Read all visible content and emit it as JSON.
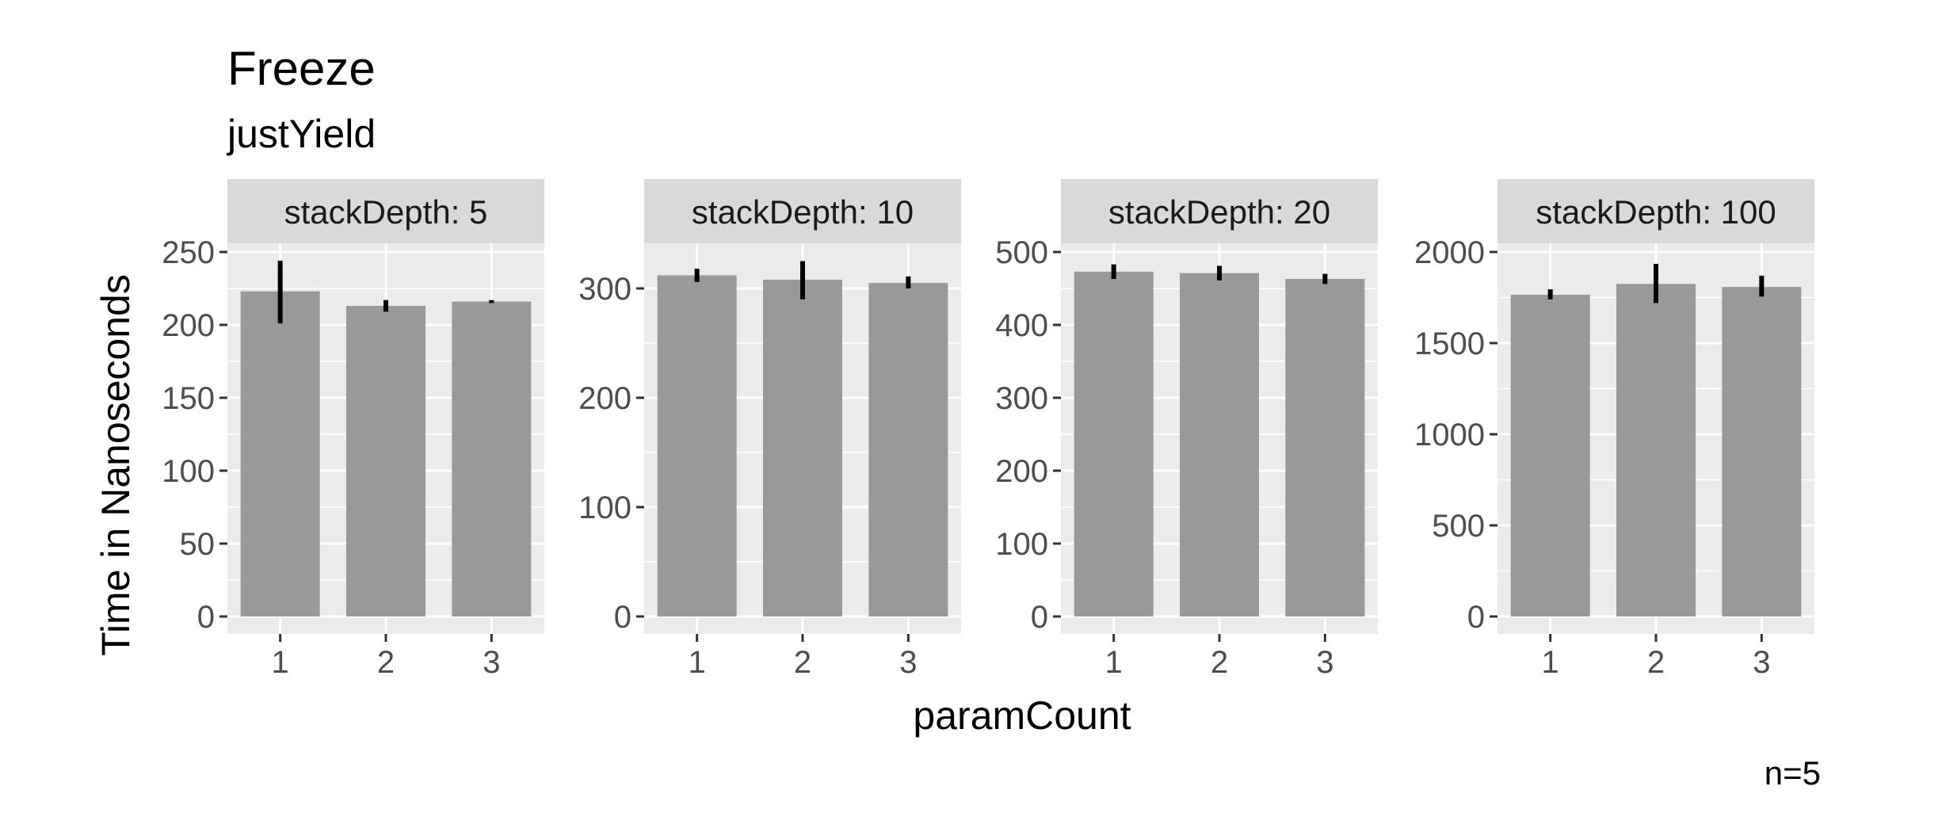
{
  "title": "Freeze",
  "subtitle": "justYield",
  "caption": "n=5",
  "chart_data": {
    "type": "bar",
    "title": "Freeze",
    "subtitle": "justYield",
    "xlabel": "paramCount",
    "ylabel": "Time in Nanoseconds",
    "facet_prefix": "stackDepth: ",
    "grid": true,
    "colors": {
      "bar": "#999999",
      "panel": "#ebebeb",
      "strip": "#d9d9d9",
      "gridline": "#ffffff",
      "errorbar": "#000000",
      "tick_text": "#4d4d4d"
    },
    "panels": [
      {
        "facet": "stackDepth: 5",
        "categories": [
          "1",
          "2",
          "3"
        ],
        "values": [
          223,
          213,
          216
        ],
        "error_low": [
          201,
          209,
          215
        ],
        "error_high": [
          244,
          217,
          217
        ],
        "ylim": [
          0,
          250
        ],
        "yticks": [
          0,
          50,
          100,
          150,
          200,
          250
        ],
        "ytick_labels": [
          "0",
          "50",
          "100",
          "150",
          "200",
          "250"
        ]
      },
      {
        "facet": "stackDepth: 10",
        "categories": [
          "1",
          "2",
          "3"
        ],
        "values": [
          312,
          308,
          305
        ],
        "error_low": [
          306,
          290,
          300
        ],
        "error_high": [
          318,
          325,
          311
        ],
        "ylim": [
          0,
          300
        ],
        "yticks": [
          0,
          100,
          200,
          300
        ],
        "ytick_labels": [
          "0",
          "100",
          "200",
          "300"
        ]
      },
      {
        "facet": "stackDepth: 20",
        "categories": [
          "1",
          "2",
          "3"
        ],
        "values": [
          473,
          471,
          463
        ],
        "error_low": [
          463,
          461,
          456
        ],
        "error_high": [
          483,
          481,
          470
        ],
        "ylim": [
          0,
          500
        ],
        "yticks": [
          0,
          100,
          200,
          300,
          400,
          500
        ],
        "ytick_labels": [
          "0",
          "100",
          "200",
          "300",
          "400",
          "500"
        ]
      },
      {
        "facet": "stackDepth: 100",
        "categories": [
          "1",
          "2",
          "3"
        ],
        "values": [
          1765,
          1825,
          1808
        ],
        "error_low": [
          1740,
          1720,
          1755
        ],
        "error_high": [
          1795,
          1935,
          1870
        ],
        "ylim": [
          0,
          2000
        ],
        "yticks": [
          0,
          500,
          1000,
          1500,
          2000
        ],
        "ytick_labels": [
          "0",
          "500",
          "1000",
          "1500",
          "2000"
        ]
      }
    ]
  }
}
